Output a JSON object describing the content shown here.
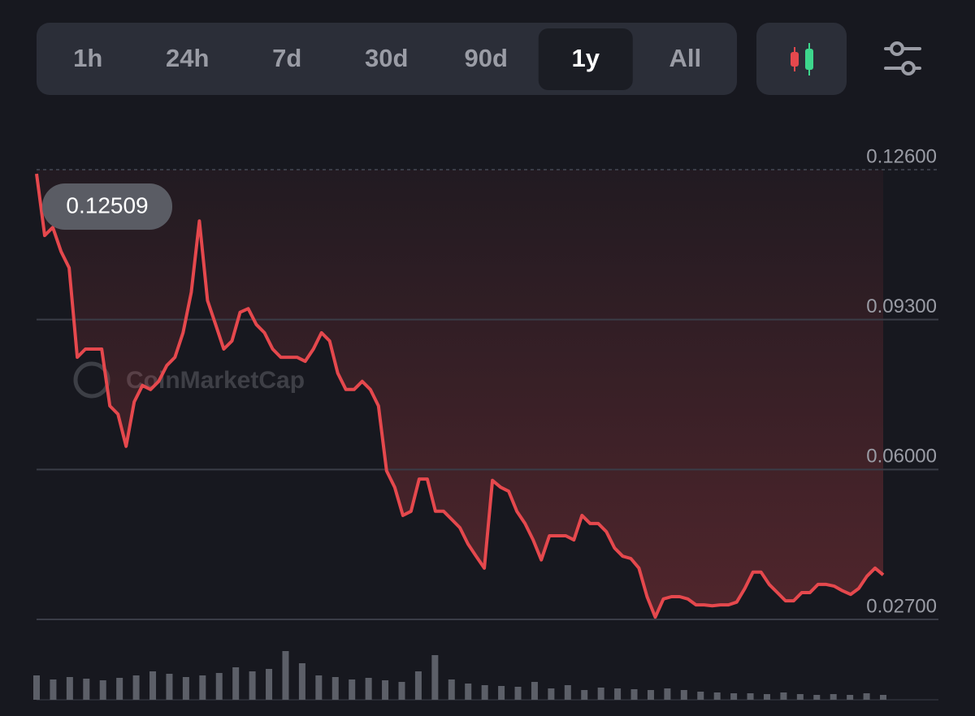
{
  "tabs": [
    "1h",
    "24h",
    "7d",
    "30d",
    "90d",
    "1y",
    "All"
  ],
  "selected_tab": "1y",
  "watermark": "CoinMarketCap",
  "chart_data": {
    "type": "line",
    "series": [
      {
        "name": "Price",
        "color": "#e5484d",
        "values": [
          0.12509,
          0.1115,
          0.1133,
          0.108,
          0.1044,
          0.0847,
          0.0865,
          0.0865,
          0.0865,
          0.074,
          0.0722,
          0.0651,
          0.0749,
          0.0785,
          0.0776,
          0.0794,
          0.0829,
          0.0847,
          0.0901,
          0.099,
          0.1147,
          0.0972,
          0.0919,
          0.0865,
          0.0883,
          0.0946,
          0.0954,
          0.0919,
          0.0901,
          0.0865,
          0.0847,
          0.0847,
          0.0847,
          0.0838,
          0.0865,
          0.0901,
          0.0883,
          0.0812,
          0.0776,
          0.0776,
          0.0794,
          0.0776,
          0.074,
          0.0597,
          0.0561,
          0.0499,
          0.0508,
          0.0579,
          0.0579,
          0.0508,
          0.0508,
          0.049,
          0.0472,
          0.0436,
          0.0409,
          0.0383,
          0.0576,
          0.0561,
          0.0552,
          0.0508,
          0.0481,
          0.0445,
          0.0401,
          0.0454,
          0.0454,
          0.0454,
          0.0445,
          0.0499,
          0.0481,
          0.0481,
          0.0463,
          0.0427,
          0.0409,
          0.0404,
          0.0383,
          0.032,
          0.0275,
          0.0315,
          0.032,
          0.032,
          0.0315,
          0.0302,
          0.0302,
          0.03,
          0.0302,
          0.0302,
          0.0308,
          0.0338,
          0.0374,
          0.0374,
          0.0347,
          0.0329,
          0.0311,
          0.0311,
          0.0329,
          0.0329,
          0.0347,
          0.0347,
          0.0343,
          0.0333,
          0.0325,
          0.0338,
          0.0365,
          0.0383,
          0.0368
        ]
      }
    ],
    "volume": {
      "color": "#5c5f68",
      "values": [
        30,
        25,
        28,
        26,
        24,
        27,
        30,
        35,
        32,
        28,
        30,
        33,
        40,
        35,
        38,
        60,
        45,
        30,
        28,
        25,
        27,
        24,
        22,
        35,
        55,
        25,
        20,
        18,
        17,
        16,
        22,
        14,
        18,
        12,
        15,
        14,
        13,
        12,
        14,
        12,
        10,
        9,
        8,
        8,
        7,
        9,
        7,
        6,
        7,
        6,
        8,
        6
      ]
    },
    "ylim": [
      0.027,
      0.126
    ],
    "yticks": [
      {
        "value": 0.027,
        "label": "0.02700"
      },
      {
        "value": 0.06,
        "label": "0.06000"
      },
      {
        "value": 0.093,
        "label": "0.09300"
      },
      {
        "value": 0.126,
        "label": "0.12600"
      }
    ],
    "grid": true
  }
}
